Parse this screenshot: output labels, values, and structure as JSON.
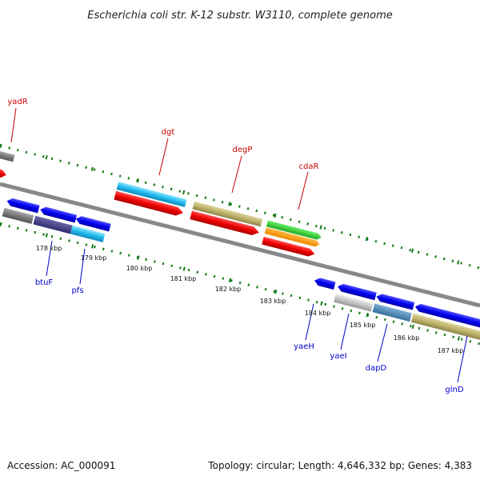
{
  "title": "Escherichia coli str. K-12 substr. W3110, complete genome",
  "footer": {
    "accession": "Accession: AC_000091",
    "summary": "Topology: circular; Length: 4,646,332 bp; Genes: 4,383"
  },
  "colors": {
    "forward_label": "#cc0000",
    "reverse_label": "#0000cc",
    "tick_mark": "#117711",
    "backbone": "#888888"
  },
  "ticks": [
    "178 kbp",
    "179 kbp",
    "180 kbp",
    "181 kbp",
    "182 kbp",
    "183 kbp",
    "184 kbp",
    "185 kbp",
    "186 kbp",
    "187 kbp"
  ],
  "gene_labels": {
    "forward": [
      "yadR",
      "dgt",
      "degP",
      "cdaR"
    ],
    "reverse": [
      "btuF",
      "pfs",
      "yaeH",
      "yaeI",
      "dapD",
      "glnD"
    ]
  }
}
